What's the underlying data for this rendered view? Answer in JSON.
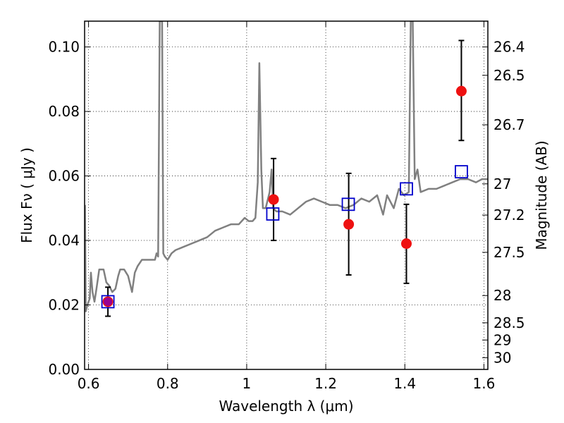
{
  "chart_data": {
    "type": "scatter",
    "xlabel": "Wavelength  λ (μm)",
    "ylabel_left": "Flux  Fν  ( μJy )",
    "ylabel_right": "Magnitude (AB)",
    "xlim": [
      0.59,
      1.61
    ],
    "ylim": [
      0.0,
      0.108
    ],
    "grid": true,
    "x_ticks": [
      0.6,
      0.8,
      1.0,
      1.2,
      1.4,
      1.6
    ],
    "x_tick_labels": [
      "0.6",
      "0.8",
      "1",
      "1.2",
      "1.4",
      "1.6"
    ],
    "y_ticks": [
      0.0,
      0.02,
      0.04,
      0.06,
      0.08,
      0.1
    ],
    "y_tick_labels": [
      "0.00",
      "0.02",
      "0.04",
      "0.06",
      "0.08",
      "0.10"
    ],
    "right_axis_ticks": [
      {
        "label": "26.4",
        "mag": 26.4
      },
      {
        "label": "26.5",
        "mag": 26.5
      },
      {
        "label": "26.7",
        "mag": 26.7
      },
      {
        "label": "27",
        "mag": 27.0
      },
      {
        "label": "27.2",
        "mag": 27.2
      },
      {
        "label": "27.5",
        "mag": 27.5
      },
      {
        "label": "28",
        "mag": 28.0
      },
      {
        "label": "28.5",
        "mag": 28.5
      },
      {
        "label": "29",
        "mag": 29.0
      },
      {
        "label": "30",
        "mag": 30.0
      }
    ],
    "series": [
      {
        "kind": "line",
        "color": "#808080",
        "points": [
          [
            0.591,
            0.051
          ],
          [
            0.593,
            0.018
          ],
          [
            0.597,
            0.02
          ],
          [
            0.603,
            0.022
          ],
          [
            0.606,
            0.03
          ],
          [
            0.61,
            0.024
          ],
          [
            0.615,
            0.021
          ],
          [
            0.62,
            0.025
          ],
          [
            0.627,
            0.031
          ],
          [
            0.638,
            0.031
          ],
          [
            0.645,
            0.027
          ],
          [
            0.652,
            0.026
          ],
          [
            0.66,
            0.024
          ],
          [
            0.668,
            0.025
          ],
          [
            0.675,
            0.029
          ],
          [
            0.68,
            0.031
          ],
          [
            0.69,
            0.031
          ],
          [
            0.7,
            0.029
          ],
          [
            0.71,
            0.024
          ],
          [
            0.717,
            0.03
          ],
          [
            0.724,
            0.032
          ],
          [
            0.735,
            0.034
          ],
          [
            0.745,
            0.034
          ],
          [
            0.756,
            0.034
          ],
          [
            0.768,
            0.034
          ],
          [
            0.772,
            0.036
          ],
          [
            0.776,
            0.035
          ],
          [
            0.78,
            0.108
          ],
          [
            0.786,
            0.108
          ],
          [
            0.789,
            0.036
          ],
          [
            0.793,
            0.035
          ],
          [
            0.8,
            0.034
          ],
          [
            0.81,
            0.036
          ],
          [
            0.82,
            0.037
          ],
          [
            0.84,
            0.038
          ],
          [
            0.86,
            0.039
          ],
          [
            0.88,
            0.04
          ],
          [
            0.9,
            0.041
          ],
          [
            0.92,
            0.043
          ],
          [
            0.94,
            0.044
          ],
          [
            0.96,
            0.045
          ],
          [
            0.98,
            0.045
          ],
          [
            0.995,
            0.047
          ],
          [
            1.005,
            0.046
          ],
          [
            1.015,
            0.046
          ],
          [
            1.022,
            0.047
          ],
          [
            1.028,
            0.058
          ],
          [
            1.032,
            0.095
          ],
          [
            1.037,
            0.062
          ],
          [
            1.041,
            0.05
          ],
          [
            1.048,
            0.05
          ],
          [
            1.058,
            0.055
          ],
          [
            1.063,
            0.062
          ],
          [
            1.067,
            0.05
          ],
          [
            1.075,
            0.049
          ],
          [
            1.09,
            0.049
          ],
          [
            1.11,
            0.048
          ],
          [
            1.13,
            0.05
          ],
          [
            1.15,
            0.052
          ],
          [
            1.17,
            0.053
          ],
          [
            1.19,
            0.052
          ],
          [
            1.21,
            0.051
          ],
          [
            1.23,
            0.051
          ],
          [
            1.25,
            0.05
          ],
          [
            1.27,
            0.051
          ],
          [
            1.29,
            0.053
          ],
          [
            1.31,
            0.052
          ],
          [
            1.33,
            0.054
          ],
          [
            1.345,
            0.048
          ],
          [
            1.355,
            0.054
          ],
          [
            1.372,
            0.05
          ],
          [
            1.385,
            0.056
          ],
          [
            1.398,
            0.054
          ],
          [
            1.41,
            0.055
          ],
          [
            1.415,
            0.108
          ],
          [
            1.42,
            0.108
          ],
          [
            1.425,
            0.059
          ],
          [
            1.432,
            0.062
          ],
          [
            1.44,
            0.055
          ],
          [
            1.46,
            0.056
          ],
          [
            1.48,
            0.056
          ],
          [
            1.5,
            0.057
          ],
          [
            1.52,
            0.058
          ],
          [
            1.54,
            0.059
          ],
          [
            1.56,
            0.059
          ],
          [
            1.58,
            0.058
          ],
          [
            1.595,
            0.059
          ],
          [
            1.61,
            0.059
          ]
        ]
      },
      {
        "kind": "points",
        "marker": "circle",
        "color": "#ee1111",
        "x": [
          0.649,
          1.068,
          1.258,
          1.404,
          1.543
        ],
        "y": [
          0.021,
          0.0527,
          0.045,
          0.039,
          0.0863
        ],
        "yerr_low": [
          0.0045,
          0.0127,
          0.0157,
          0.0123,
          0.0153
        ],
        "yerr_high": [
          0.0045,
          0.0127,
          0.0158,
          0.0122,
          0.0157
        ]
      },
      {
        "kind": "points",
        "marker": "open-square",
        "color": "#0000cc",
        "x": [
          0.649,
          1.066,
          1.257,
          1.404,
          1.543
        ],
        "y": [
          0.021,
          0.0482,
          0.0512,
          0.056,
          0.0613
        ]
      }
    ]
  }
}
